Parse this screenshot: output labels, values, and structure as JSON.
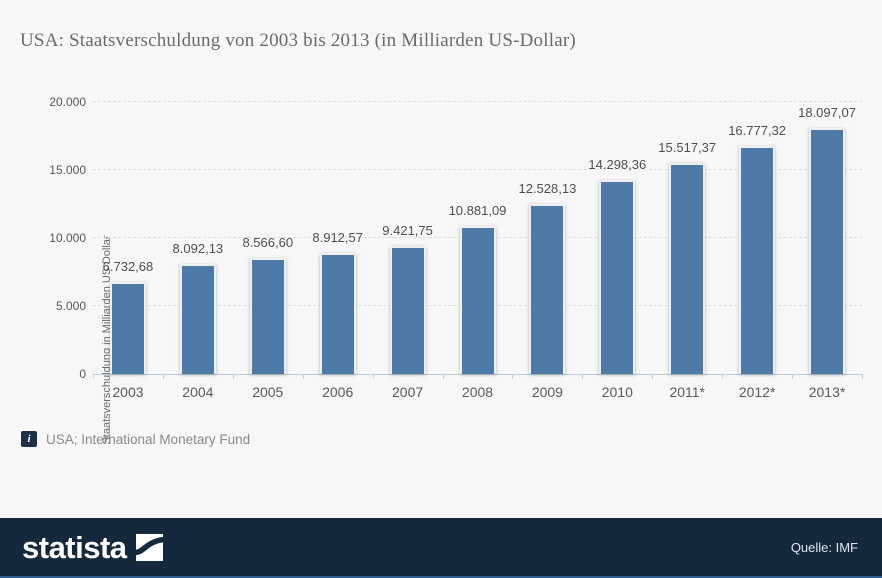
{
  "title": "USA: Staatsverschuldung von 2003 bis 2013 (in Milliarden US-Dollar)",
  "source_note": "USA; International Monetary Fund",
  "info_icon_glyph": "i",
  "footer": {
    "brand": "statista",
    "source_credit": "Quelle: IMF"
  },
  "colors": {
    "bar_fill": "#4d7aa6",
    "bar_border": "#efefef",
    "background": "#f7f7f7",
    "footer_bg": "#15293d",
    "footer_accent": "#2e5e93",
    "gridline": "#dcdcdc",
    "axis": "#b9cdda"
  },
  "chart_data": {
    "type": "bar",
    "title": "USA: Staatsverschuldung von 2003 bis 2013 (in Milliarden US-Dollar)",
    "categories": [
      "2003",
      "2004",
      "2005",
      "2006",
      "2007",
      "2008",
      "2009",
      "2010",
      "2011*",
      "2012*",
      "2013*"
    ],
    "values": [
      6732.68,
      8092.13,
      8566.6,
      8912.57,
      9421.75,
      10881.09,
      12528.13,
      14298.36,
      15517.37,
      16777.32,
      18097.07
    ],
    "value_labels": [
      "6.732,68",
      "8.092,13",
      "8.566,60",
      "8.912,57",
      "9.421,75",
      "10.881,09",
      "12.528,13",
      "14.298,36",
      "15.517,37",
      "16.777,32",
      "18.097,07"
    ],
    "xlabel": "",
    "ylabel": "Staatsverschuldung in Milliarden US-Dollar",
    "ylim": [
      0,
      20000
    ],
    "yticks": [
      0,
      5000,
      10000,
      15000,
      20000
    ],
    "ytick_labels": [
      "0",
      "5.000",
      "10.000",
      "15.000",
      "20.000"
    ],
    "grid": "horizontal-dashed",
    "legend": "none"
  }
}
